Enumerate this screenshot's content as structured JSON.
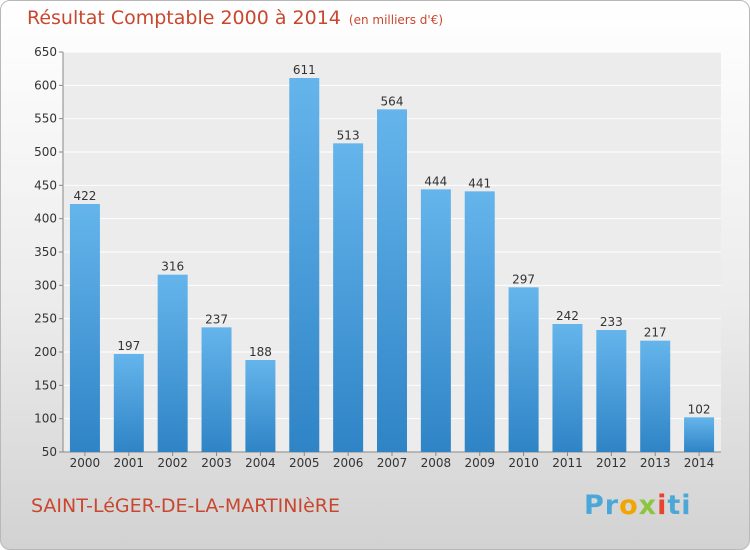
{
  "title": "Résultat Comptable 2000 à 2014",
  "subtitle": "(en milliers d'€)",
  "place": "SAINT-LéGER-DE-LA-MARTINIèRE",
  "logo": {
    "text": "Proxiti",
    "parts": [
      "Pr",
      "o",
      "x",
      "i",
      "ti"
    ]
  },
  "colors": {
    "bar_top": "#65b5ec",
    "bar_bottom": "#2f84c6",
    "title": "#c9472e"
  },
  "chart_data": {
    "type": "bar",
    "categories": [
      "2000",
      "2001",
      "2002",
      "2003",
      "2004",
      "2005",
      "2006",
      "2007",
      "2008",
      "2009",
      "2010",
      "2011",
      "2012",
      "2013",
      "2014"
    ],
    "values": [
      422,
      197,
      316,
      237,
      188,
      611,
      513,
      564,
      444,
      441,
      297,
      242,
      233,
      217,
      102
    ],
    "ylim": [
      50,
      650
    ],
    "yticks": [
      50,
      100,
      150,
      200,
      250,
      300,
      350,
      400,
      450,
      500,
      550,
      600,
      650
    ],
    "grid": true,
    "xlabel": "",
    "ylabel": ""
  }
}
